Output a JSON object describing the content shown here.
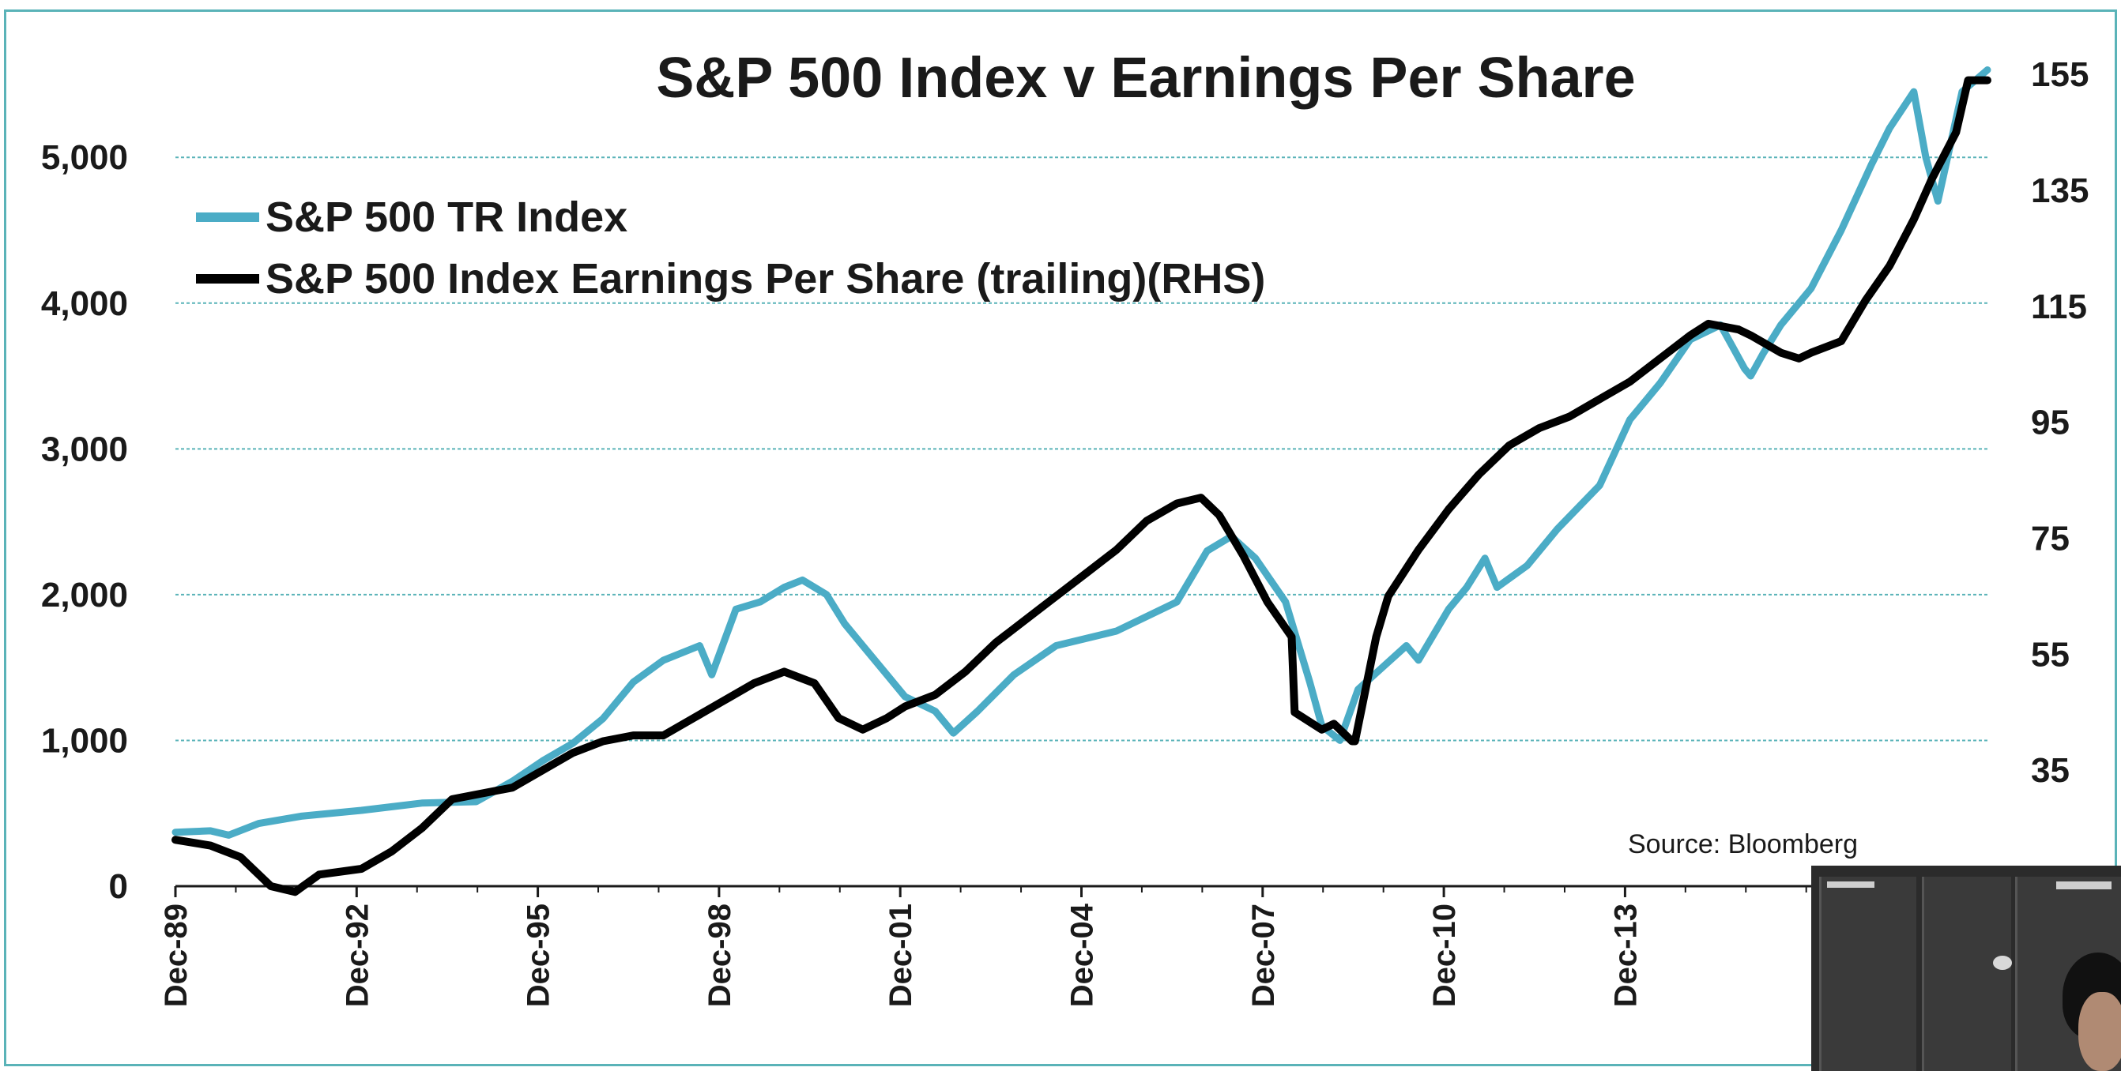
{
  "chart_data": {
    "type": "line",
    "title": "S&P 500 Index v Earnings Per Share",
    "xlabel": "",
    "ylabel": "",
    "x_ticks": [
      "Dec-89",
      "Dec-92",
      "Dec-95",
      "Dec-98",
      "Dec-01",
      "Dec-04",
      "Dec-07",
      "Dec-10",
      "Dec-13"
    ],
    "x_range": [
      1989.92,
      2019.92
    ],
    "y_left": {
      "ticks": [
        "0",
        "1,000",
        "2,000",
        "3,000",
        "4,000",
        "5,000"
      ],
      "values": [
        0,
        1000,
        2000,
        3000,
        4000,
        5000
      ],
      "range": [
        0,
        5700
      ]
    },
    "y_right": {
      "ticks": [
        "35",
        "55",
        "75",
        "95",
        "115",
        "135",
        "155"
      ],
      "values": [
        35,
        55,
        75,
        95,
        115,
        135,
        155
      ],
      "range": [
        15,
        158.3
      ]
    },
    "gridlines": "horizontal",
    "legend_position": "top-left",
    "source": "Source: Bloomberg",
    "series": [
      {
        "name": "S&P 500 TR Index",
        "axis": "left",
        "color": "#4bacc6",
        "x": [
          1989.92,
          1990.5,
          1990.8,
          1991.3,
          1992.0,
          1993.0,
          1994.0,
          1994.9,
          1995.5,
          1996.0,
          1996.5,
          1997.0,
          1997.5,
          1998.0,
          1998.6,
          1998.8,
          1999.2,
          1999.6,
          2000.0,
          2000.3,
          2000.7,
          2001.0,
          2001.3,
          2001.7,
          2002.0,
          2002.5,
          2002.8,
          2003.2,
          2003.8,
          2004.5,
          2005.5,
          2006.5,
          2007.0,
          2007.4,
          2007.8,
          2008.3,
          2008.7,
          2008.9,
          2009.2,
          2009.5,
          2009.9,
          2010.3,
          2010.5,
          2011.0,
          2011.3,
          2011.6,
          2011.8,
          2012.3,
          2012.8,
          2013.5,
          2014.0,
          2014.5,
          2015.0,
          2015.5,
          2015.7,
          2015.9,
          2016.0,
          2016.2,
          2016.5,
          2017.0,
          2017.5,
          2018.0,
          2018.3,
          2018.7,
          2018.9,
          2019.1,
          2019.5,
          2019.92
        ],
        "values": [
          370,
          380,
          350,
          430,
          480,
          520,
          570,
          580,
          720,
          860,
          980,
          1150,
          1400,
          1550,
          1650,
          1450,
          1900,
          1950,
          2050,
          2100,
          2000,
          1800,
          1650,
          1450,
          1300,
          1200,
          1050,
          1200,
          1450,
          1650,
          1750,
          1950,
          2300,
          2400,
          2250,
          1950,
          1400,
          1100,
          1000,
          1350,
          1500,
          1650,
          1550,
          1900,
          2050,
          2250,
          2050,
          2200,
          2450,
          2750,
          3200,
          3450,
          3750,
          3850,
          3700,
          3550,
          3500,
          3650,
          3850,
          4100,
          4500,
          4950,
          5200,
          5450,
          5000,
          4700,
          5450,
          5600
        ]
      },
      {
        "name": "S&P 500 Index Earnings Per Share (trailing)(RHS)",
        "axis": "right",
        "color": "#000000",
        "x": [
          1989.92,
          1990.5,
          1991.0,
          1991.5,
          1991.9,
          1992.3,
          1993.0,
          1993.5,
          1994.0,
          1994.5,
          1995.0,
          1995.5,
          1996.0,
          1996.5,
          1997.0,
          1997.5,
          1998.0,
          1998.5,
          1999.0,
          1999.5,
          2000.0,
          2000.5,
          2000.9,
          2001.3,
          2001.7,
          2002.0,
          2002.5,
          2003.0,
          2003.5,
          2004.0,
          2004.5,
          2005.0,
          2005.5,
          2006.0,
          2006.5,
          2006.9,
          2007.2,
          2007.6,
          2008.0,
          2008.4,
          2008.45,
          2008.9,
          2009.1,
          2009.4,
          2009.45,
          2009.8,
          2010.0,
          2010.5,
          2011.0,
          2011.5,
          2012.0,
          2012.5,
          2013.0,
          2013.5,
          2014.0,
          2014.5,
          2015.0,
          2015.3,
          2015.8,
          2016.0,
          2016.5,
          2016.8,
          2017.0,
          2017.5,
          2017.9,
          2018.3,
          2018.7,
          2019.0,
          2019.4,
          2019.6,
          2019.92
        ],
        "values": [
          23,
          22,
          20,
          15,
          14,
          17,
          18,
          21,
          25,
          30,
          31,
          32,
          35,
          38,
          40,
          41,
          41,
          44,
          47,
          50,
          52,
          50,
          44,
          42,
          44,
          46,
          48,
          52,
          57,
          61,
          65,
          69,
          73,
          78,
          81,
          82,
          79,
          72,
          64,
          58,
          45,
          42,
          43,
          40,
          40,
          58,
          65,
          73,
          80,
          86,
          91,
          94,
          96,
          99,
          102,
          106,
          110,
          112,
          111,
          110,
          107,
          106,
          107,
          109,
          116,
          122,
          130,
          137,
          145,
          154,
          154
        ]
      }
    ]
  },
  "legend": {
    "items": [
      {
        "label": "S&P 500 TR Index",
        "color": "#4bacc6"
      },
      {
        "label": "S&P 500 Index Earnings Per Share (trailing)(RHS)",
        "color": "#000000"
      }
    ]
  },
  "colors": {
    "frame": "#5ab3b8",
    "grid": "#5ab3b8",
    "text": "#1a1a1a"
  }
}
